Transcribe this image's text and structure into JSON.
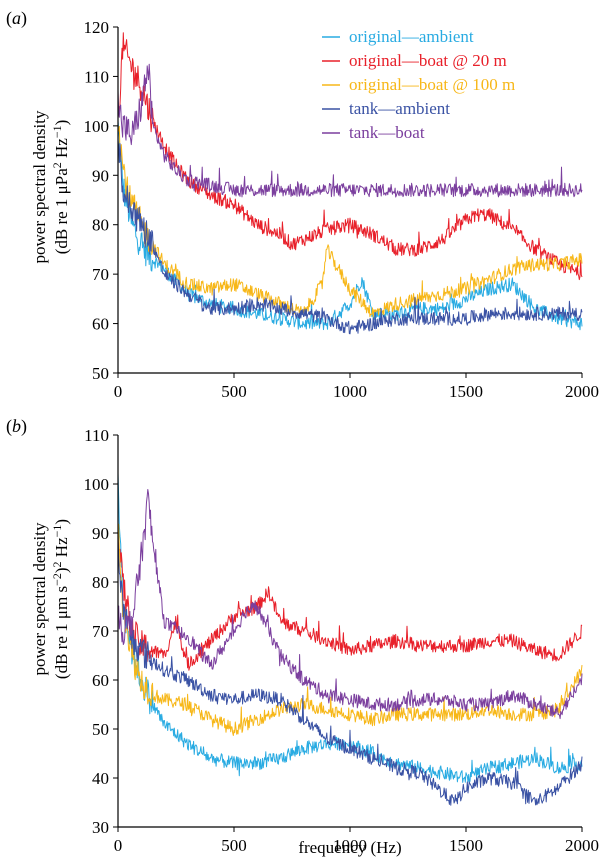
{
  "chart_data": [
    {
      "type": "line",
      "panel": "(a)",
      "panel_paren_open": "(",
      "panel_letter": "a",
      "panel_paren_close": ")",
      "ylabel_line1": "power spectral density",
      "ylabel_line2_pre": "(dB re 1 μPa",
      "ylabel_line2_sup1": "2",
      "ylabel_line2_mid": " Hz",
      "ylabel_line2_sup2": "−1",
      "ylabel_line2_post": ")",
      "xlabel": "",
      "xlim": [
        0,
        2000
      ],
      "ylim": [
        50,
        120
      ],
      "xticks": [
        "0",
        "500",
        "1000",
        "1500",
        "2000"
      ],
      "yticks": [
        "50",
        "60",
        "70",
        "80",
        "90",
        "100",
        "110",
        "120"
      ],
      "grid": false,
      "legend_position": "top-right",
      "series": [
        {
          "name": "original—ambient",
          "color": "#29ABE2",
          "x": [
            0,
            20,
            60,
            100,
            150,
            200,
            300,
            400,
            500,
            600,
            700,
            800,
            900,
            1000,
            1050,
            1100,
            1200,
            1300,
            1400,
            1500,
            1600,
            1700,
            1800,
            1900,
            2000
          ],
          "y": [
            100,
            88,
            80,
            76,
            73,
            71,
            66,
            64,
            63,
            62,
            61,
            60,
            60,
            64,
            69,
            62,
            62,
            63,
            63,
            65,
            67,
            68,
            63,
            61,
            60
          ]
        },
        {
          "name": "original—boat @ 20 m",
          "color": "#E8202A",
          "x": [
            0,
            20,
            50,
            100,
            150,
            200,
            250,
            300,
            400,
            500,
            600,
            700,
            750,
            800,
            900,
            1000,
            1100,
            1200,
            1300,
            1400,
            1500,
            1550,
            1600,
            1700,
            1800,
            1900,
            2000
          ],
          "y": [
            100,
            116,
            113,
            108,
            101,
            96,
            92,
            89,
            86,
            84,
            80,
            78,
            76,
            77,
            79,
            80,
            78,
            75,
            75,
            77,
            81,
            82,
            82,
            79,
            75,
            72,
            70
          ]
        },
        {
          "name": "original—boat @ 100 m",
          "color": "#F7B718",
          "x": [
            0,
            20,
            50,
            100,
            150,
            200,
            300,
            400,
            500,
            600,
            700,
            800,
            880,
            900,
            1000,
            1100,
            1200,
            1300,
            1400,
            1500,
            1600,
            1700,
            1800,
            1900,
            2000
          ],
          "y": [
            102,
            92,
            85,
            80,
            76,
            72,
            68,
            67,
            68,
            66,
            64,
            62,
            68,
            75,
            67,
            62,
            64,
            65,
            66,
            67,
            69,
            71,
            72,
            72,
            73
          ]
        },
        {
          "name": "tank—ambient",
          "color": "#3A52A4",
          "x": [
            0,
            20,
            60,
            100,
            150,
            200,
            300,
            400,
            500,
            600,
            700,
            800,
            900,
            1000,
            1100,
            1200,
            1300,
            1400,
            1500,
            1600,
            1700,
            1800,
            1900,
            2000
          ],
          "y": [
            98,
            87,
            83,
            80,
            76,
            70,
            66,
            63,
            63,
            64,
            63,
            62,
            61,
            59,
            60,
            61,
            61,
            61,
            61,
            62,
            62,
            62,
            62,
            62
          ]
        },
        {
          "name": "tank—boat",
          "color": "#7B3F9E",
          "x": [
            0,
            20,
            60,
            100,
            130,
            150,
            200,
            250,
            300,
            400,
            500,
            600,
            700,
            800,
            900,
            1000,
            1200,
            1400,
            1600,
            1800,
            2000
          ],
          "y": [
            105,
            100,
            98,
            104,
            112,
            100,
            94,
            91,
            89,
            88,
            87,
            87,
            87,
            87,
            87,
            87,
            87,
            87,
            87,
            87,
            87
          ]
        }
      ]
    },
    {
      "type": "line",
      "panel": "(b)",
      "panel_paren_open": "(",
      "panel_letter": "b",
      "panel_paren_close": ")",
      "ylabel_line1": "power spectral density",
      "ylabel_line2_pre": "(dB re 1 μm s",
      "ylabel_line2_sup1": "−2",
      "ylabel_line2_mid": ")",
      "ylabel_line2_sup2": "2",
      "ylabel_line2_post": " Hz",
      "ylabel_line2_sup3": "−1",
      "ylabel_line2_end": ")",
      "xlabel": "frequency (Hz)",
      "xlim": [
        0,
        2000
      ],
      "ylim": [
        30,
        110
      ],
      "xticks": [
        "0",
        "500",
        "1000",
        "1500",
        "2000"
      ],
      "yticks": [
        "30",
        "40",
        "50",
        "60",
        "70",
        "80",
        "90",
        "100",
        "110"
      ],
      "grid": false,
      "series": [
        {
          "name": "original—ambient",
          "color": "#29ABE2",
          "x": [
            0,
            20,
            60,
            100,
            150,
            200,
            300,
            400,
            500,
            600,
            700,
            800,
            900,
            1000,
            1100,
            1200,
            1300,
            1400,
            1500,
            1600,
            1700,
            1800,
            1900,
            2000
          ],
          "y": [
            100,
            78,
            66,
            60,
            55,
            51,
            47,
            44,
            43,
            43,
            44,
            46,
            47,
            47,
            45,
            43,
            42,
            41,
            40,
            42,
            43,
            44,
            42,
            43
          ]
        },
        {
          "name": "original—boat @ 20 m",
          "color": "#E8202A",
          "x": [
            0,
            20,
            60,
            100,
            150,
            200,
            250,
            300,
            400,
            500,
            600,
            650,
            700,
            800,
            900,
            1000,
            1100,
            1200,
            1300,
            1400,
            1500,
            1600,
            1700,
            1800,
            1900,
            2000
          ],
          "y": [
            90,
            80,
            70,
            67,
            66,
            65,
            72,
            63,
            68,
            73,
            75,
            78,
            72,
            70,
            68,
            66,
            67,
            68,
            67,
            67,
            67,
            68,
            68,
            66,
            65,
            70
          ]
        },
        {
          "name": "original—boat @ 100 m",
          "color": "#F7B718",
          "x": [
            0,
            20,
            60,
            100,
            150,
            200,
            300,
            400,
            500,
            600,
            700,
            800,
            900,
            1000,
            1100,
            1200,
            1300,
            1400,
            1500,
            1600,
            1700,
            1800,
            1900,
            2000
          ],
          "y": [
            92,
            76,
            65,
            60,
            57,
            56,
            55,
            52,
            50,
            52,
            54,
            55,
            54,
            53,
            52,
            53,
            53,
            53,
            53,
            54,
            53,
            53,
            54,
            62
          ]
        },
        {
          "name": "tank—ambient",
          "color": "#3A52A4",
          "x": [
            0,
            20,
            60,
            100,
            150,
            200,
            300,
            400,
            500,
            600,
            700,
            800,
            900,
            1000,
            1100,
            1200,
            1300,
            1400,
            1450,
            1500,
            1600,
            1700,
            1800,
            1900,
            2000
          ],
          "y": [
            88,
            75,
            68,
            66,
            64,
            62,
            60,
            57,
            56,
            57,
            56,
            52,
            48,
            46,
            44,
            42,
            41,
            37,
            35,
            38,
            40,
            39,
            35,
            38,
            43
          ]
        },
        {
          "name": "tank—boat",
          "color": "#7B3F9E",
          "x": [
            0,
            20,
            60,
            100,
            130,
            150,
            200,
            250,
            300,
            400,
            500,
            550,
            600,
            700,
            800,
            900,
            1000,
            1100,
            1200,
            1300,
            1400,
            1500,
            1600,
            1700,
            1800,
            1900,
            2000
          ],
          "y": [
            75,
            70,
            72,
            85,
            97,
            88,
            72,
            70,
            69,
            63,
            70,
            74,
            75,
            65,
            60,
            57,
            56,
            55,
            55,
            56,
            56,
            55,
            55,
            57,
            55,
            53,
            60
          ]
        }
      ]
    }
  ]
}
